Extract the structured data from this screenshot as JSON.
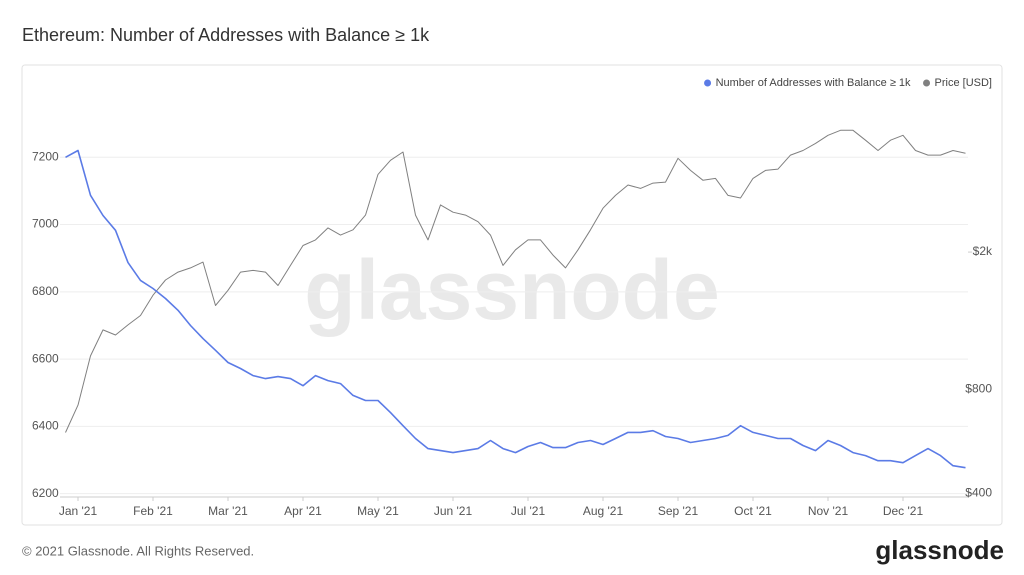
{
  "chart_data": {
    "type": "line",
    "title": "Ethereum: Number of Addresses with Balance ≥ 1k",
    "watermark": "glassnode",
    "footer": "© 2021 Glassnode. All Rights Reserved.",
    "brand": "glassnode",
    "legend": "top-right",
    "grid": true,
    "categories": [
      null,
      "Jan '21",
      null,
      null,
      null,
      null,
      null,
      "Feb '21",
      null,
      null,
      null,
      null,
      null,
      "Mar '21",
      null,
      null,
      null,
      null,
      null,
      "Apr '21",
      null,
      null,
      null,
      null,
      null,
      "May '21",
      null,
      null,
      null,
      null,
      null,
      "Jun '21",
      null,
      null,
      null,
      null,
      null,
      "Jul '21",
      null,
      null,
      null,
      null,
      null,
      "Aug '21",
      null,
      null,
      null,
      null,
      null,
      "Sep '21",
      null,
      null,
      null,
      null,
      null,
      "Oct '21",
      null,
      null,
      null,
      null,
      null,
      "Nov '21",
      null,
      null,
      null,
      null,
      null,
      "Dec '21",
      null,
      null,
      null,
      null,
      null
    ],
    "ylim": [
      6190,
      7400
    ],
    "yticks": [
      6200,
      6400,
      6600,
      6800,
      7000,
      7200
    ],
    "y2log": true,
    "y2lim": [
      390,
      5900
    ],
    "y2ticks": [
      {
        "value": 400,
        "label": "$400"
      },
      {
        "value": 800,
        "label": "$800"
      },
      {
        "value": 2000,
        "label": "$2k"
      }
    ],
    "series": [
      {
        "name": "Number of Addresses with Balance ≥ 1k",
        "color": "#5b7be6",
        "axis": "y",
        "values": [
          7200,
          7220,
          7087,
          7027,
          6983,
          6887,
          6834,
          6810,
          6780,
          6745,
          6700,
          6661,
          6626,
          6590,
          6572,
          6551,
          6542,
          6548,
          6542,
          6521,
          6551,
          6536,
          6527,
          6492,
          6477,
          6477,
          6441,
          6402,
          6364,
          6334,
          6328,
          6322,
          6328,
          6334,
          6358,
          6334,
          6322,
          6340,
          6352,
          6337,
          6337,
          6352,
          6358,
          6346,
          6364,
          6382,
          6382,
          6387,
          6370,
          6364,
          6352,
          6358,
          6364,
          6373,
          6402,
          6382,
          6373,
          6364,
          6364,
          6343,
          6328,
          6358,
          6343,
          6322,
          6313,
          6298,
          6298,
          6292,
          6313,
          6334,
          6313,
          6283,
          6277
        ]
      },
      {
        "name": "Price [USD]",
        "color": "#808080",
        "axis": "y2",
        "values": [
          600,
          720,
          1000,
          1190,
          1150,
          1230,
          1310,
          1500,
          1660,
          1750,
          1800,
          1870,
          1400,
          1550,
          1750,
          1770,
          1750,
          1600,
          1830,
          2090,
          2170,
          2350,
          2240,
          2320,
          2560,
          3360,
          3690,
          3900,
          2560,
          2170,
          2740,
          2610,
          2560,
          2450,
          2240,
          1830,
          2030,
          2170,
          2170,
          1960,
          1800,
          2030,
          2320,
          2680,
          2920,
          3130,
          3060,
          3170,
          3190,
          3740,
          3450,
          3230,
          3270,
          2920,
          2870,
          3270,
          3450,
          3480,
          3820,
          3940,
          4130,
          4360,
          4510,
          4510,
          4220,
          3940,
          4220,
          4360,
          3940,
          3820,
          3820,
          3940,
          3870
        ]
      }
    ]
  }
}
